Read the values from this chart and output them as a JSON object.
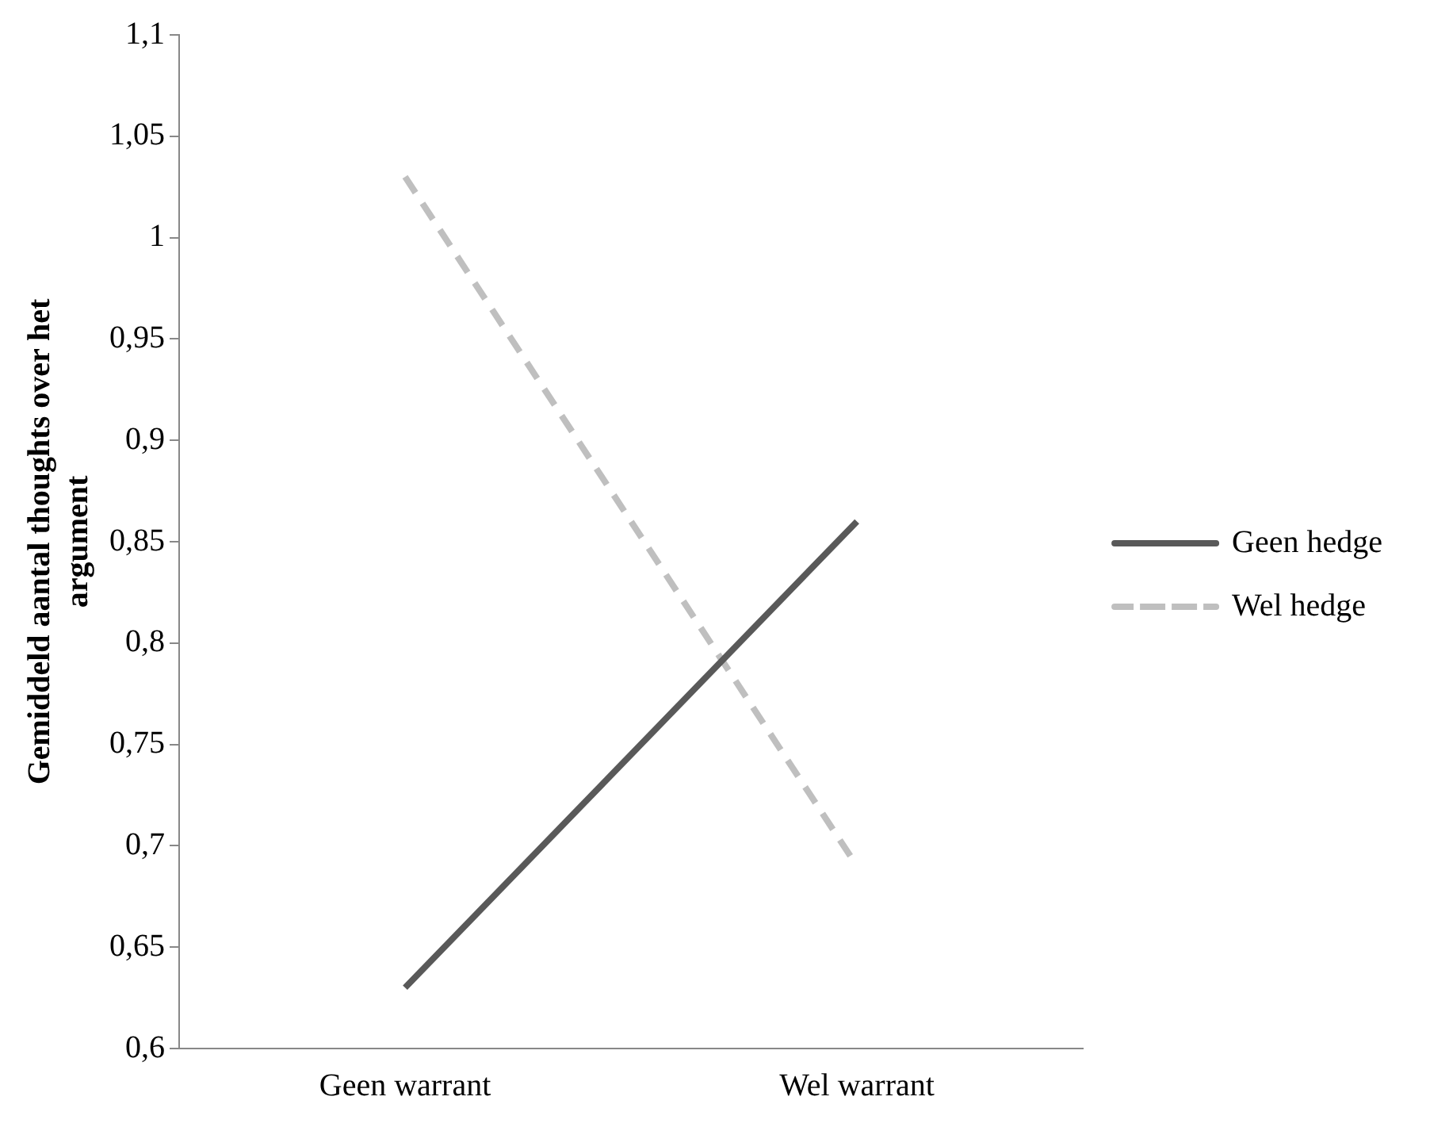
{
  "chart_data": {
    "type": "line",
    "ylabel": "Gemiddeld aantal thoughts over het argument",
    "categories": [
      "Geen warrant",
      "Wel warrant"
    ],
    "series": [
      {
        "name": "Geen hedge",
        "color": "#595959",
        "values": [
          0.63,
          0.86
        ],
        "line_style": "solid"
      },
      {
        "name": "Wel hedge",
        "color": "#bfbfbf",
        "values": [
          1.03,
          0.69
        ],
        "line_style": "dashed"
      }
    ],
    "ylim": [
      0.6,
      1.1
    ],
    "yticks": [
      {
        "value": 0.6,
        "label": "0,6"
      },
      {
        "value": 0.65,
        "label": "0,65"
      },
      {
        "value": 0.7,
        "label": "0,7"
      },
      {
        "value": 0.75,
        "label": "0,75"
      },
      {
        "value": 0.8,
        "label": "0,8"
      },
      {
        "value": 0.85,
        "label": "0,85"
      },
      {
        "value": 0.9,
        "label": "0,9"
      },
      {
        "value": 0.95,
        "label": "0,95"
      },
      {
        "value": 1,
        "label": "1"
      },
      {
        "value": 1.05,
        "label": "1,05"
      },
      {
        "value": 1.1,
        "label": "1,1"
      }
    ],
    "grid": false,
    "legend": "right",
    "marker": "none"
  }
}
